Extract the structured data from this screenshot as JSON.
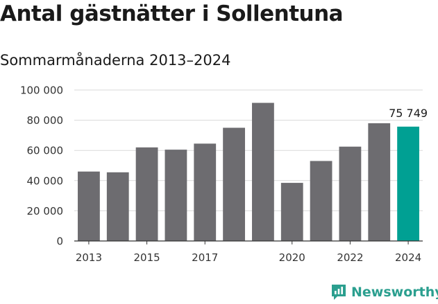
{
  "title": "Antal gästnätter i Sollentuna",
  "subtitle": "Sommarmånaderna 2013–2024",
  "brand": "Newsworthy",
  "colors": {
    "bar": "#6d6c70",
    "highlight": "#00a093",
    "grid": "#d9d9d9",
    "axis": "#333333",
    "brand": "#2b9f8f"
  },
  "chart_data": {
    "type": "bar",
    "categories": [
      "2013",
      "2014",
      "2015",
      "2016",
      "2017",
      "2018",
      "2019",
      "2020",
      "2021",
      "2022",
      "2023",
      "2024"
    ],
    "values": [
      46000,
      45500,
      62000,
      60500,
      64500,
      75000,
      91500,
      38500,
      53000,
      62500,
      78000,
      75749
    ],
    "highlight_index": 11,
    "annotation": "75 749",
    "x_tick_labels": [
      "2013",
      "",
      "2015",
      "",
      "2017",
      "",
      "",
      "2020",
      "",
      "2022",
      "",
      "2024"
    ],
    "y_ticks": [
      0,
      20000,
      40000,
      60000,
      80000,
      100000
    ],
    "y_tick_labels": [
      "0",
      "20 000",
      "40 000",
      "60 000",
      "80 000",
      "100 000"
    ],
    "ylim": [
      0,
      100000
    ],
    "grid": true,
    "legend": "none"
  }
}
